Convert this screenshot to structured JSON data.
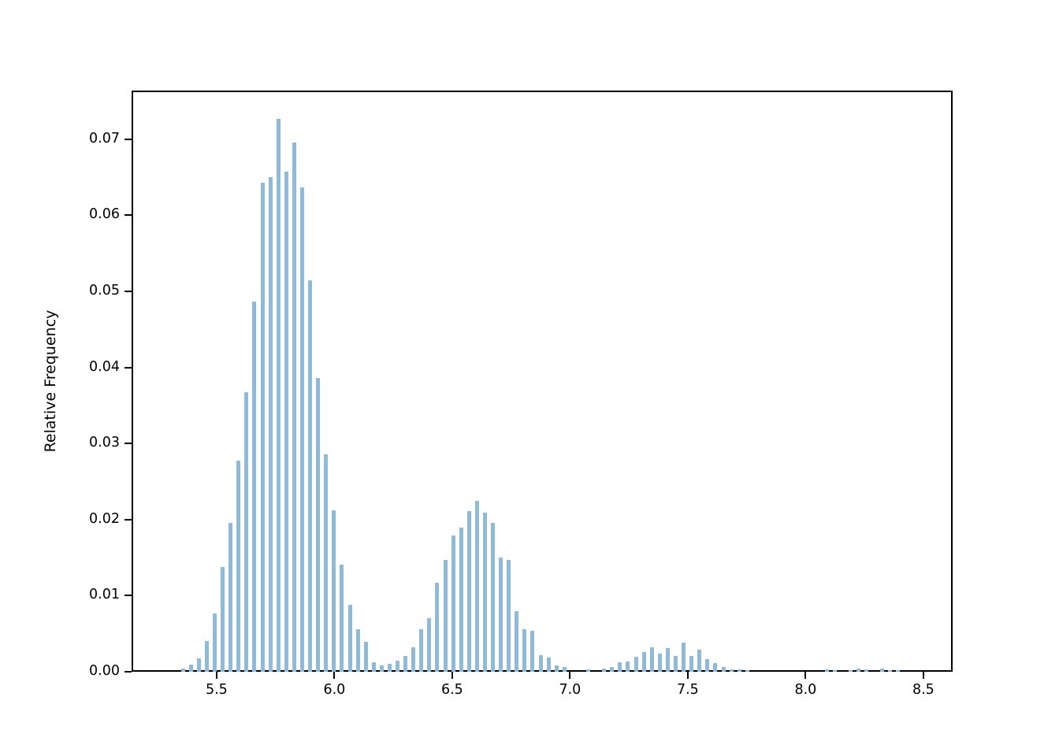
{
  "figure": {
    "background": "#ffffff"
  },
  "chart_data": {
    "type": "bar",
    "title": "",
    "xlabel": "",
    "ylabel": "Relative Frequency",
    "bar_color": "#8fbbd9",
    "axis_color": "#000000",
    "grid": false,
    "legend": null,
    "xlim": [
      5.139,
      8.624
    ],
    "ylim": [
      0,
      0.0764
    ],
    "x_ticks": [
      5.5,
      6.0,
      6.5,
      7.0,
      7.5,
      8.0,
      8.5
    ],
    "x_tick_labels": [
      "5.5",
      "6.0",
      "6.5",
      "7.0",
      "7.5",
      "8.0",
      "8.5"
    ],
    "y_ticks": [
      0.0,
      0.01,
      0.02,
      0.03,
      0.04,
      0.05,
      0.06,
      0.07
    ],
    "y_tick_labels": [
      "0.00",
      "0.01",
      "0.02",
      "0.03",
      "0.04",
      "0.05",
      "0.06",
      "0.07"
    ],
    "bin_start": 5.357,
    "bin_step": 0.03373,
    "bar_width_fraction": 0.5,
    "values": [
      0.0004,
      0.0009,
      0.0018,
      0.004,
      0.0077,
      0.0138,
      0.0196,
      0.0277,
      0.0368,
      0.0487,
      0.0643,
      0.065,
      0.0727,
      0.0657,
      0.0696,
      0.0637,
      0.0515,
      0.0386,
      0.0286,
      0.0212,
      0.0141,
      0.0088,
      0.0056,
      0.0039,
      0.0012,
      0.0008,
      0.001,
      0.0015,
      0.0021,
      0.0032,
      0.0056,
      0.007,
      0.0117,
      0.0147,
      0.0179,
      0.0189,
      0.0211,
      0.0225,
      0.0209,
      0.0196,
      0.015,
      0.0147,
      0.008,
      0.0056,
      0.0054,
      0.0022,
      0.0019,
      0.0008,
      0.0006,
      0.0,
      0.0,
      0.0003,
      0.0,
      0.0004,
      0.0006,
      0.0012,
      0.0014,
      0.002,
      0.0026,
      0.0032,
      0.0024,
      0.0031,
      0.0021,
      0.0038,
      0.0021,
      0.0029,
      0.0017,
      0.0011,
      0.0006,
      0.0003,
      0.0003,
      0.0002,
      0.0,
      0.0,
      0.0,
      0.0,
      0.0,
      0.0,
      0.0,
      0.0,
      0.0,
      0.0003,
      0.0002,
      0.0,
      0.0002,
      0.0004,
      0.0003,
      0.0,
      0.0004,
      0.0002,
      0.0002
    ]
  }
}
